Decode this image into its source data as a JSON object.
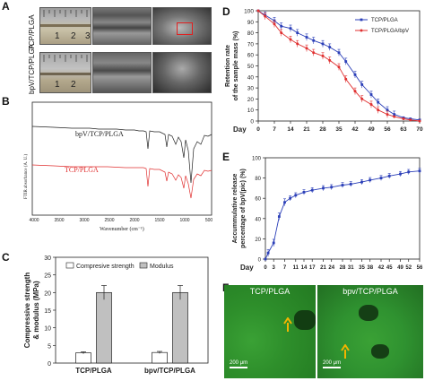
{
  "panel_A": {
    "label": "A",
    "row_labels": [
      "TCP/PLGA",
      "bpV/TCP/PLGA"
    ],
    "ruler_digits": [
      "1",
      "2",
      "3"
    ]
  },
  "panel_B": {
    "label": "B",
    "series_labels": [
      "bpV/TCP/PLGA",
      "TCP/PLGA"
    ],
    "ylabel": "FTIR absorbance (A. U.)",
    "xlabel": "Wavenumber (cm⁻¹)",
    "xticks": [
      "4000",
      "3500",
      "3000",
      "2500",
      "2000",
      "1500",
      "1000",
      "500"
    ]
  },
  "panel_C": {
    "label": "C"
  },
  "panel_D": {
    "label": "D"
  },
  "panel_E": {
    "label": "E"
  },
  "panel_F": {
    "label": "F",
    "left_title": "TCP/PLGA",
    "right_title": "bpv/TCP/PLGA",
    "scale_text": "200 μm"
  },
  "colors": {
    "blue": "#2b3fb8",
    "red": "#e03030",
    "gray_bar": "#c0c0c0",
    "fluo_green": "#2c8d2a",
    "arrow": "#f2b400"
  },
  "chart_data": [
    {
      "id": "C",
      "type": "bar",
      "categories": [
        "TCP/PLGA",
        "bpv/TCP/PLGA"
      ],
      "series": [
        {
          "name": "Compresive strength",
          "values": [
            2.9,
            3.0
          ],
          "errors": [
            0.3,
            0.3
          ]
        },
        {
          "name": "Modulus",
          "values": [
            20,
            20
          ],
          "errors": [
            2.0,
            2.0
          ]
        }
      ],
      "ylabel": "Compressive strength & modulus (MPa)",
      "ylim": [
        0,
        30
      ],
      "yticks": [
        "0",
        "5",
        "10",
        "15",
        "20",
        "25",
        "30"
      ],
      "legend": "top"
    },
    {
      "id": "D",
      "type": "line",
      "xlabel": "Day",
      "ylabel": "Retention rate of the sample mass (%)",
      "xlim": [
        0,
        70
      ],
      "ylim": [
        0,
        100
      ],
      "xticks": [
        "0",
        "7",
        "14",
        "21",
        "28",
        "35",
        "42",
        "49",
        "56",
        "63",
        "70"
      ],
      "yticks": [
        "0",
        "10",
        "20",
        "30",
        "40",
        "50",
        "60",
        "70",
        "80",
        "90",
        "100"
      ],
      "legend": "top-right",
      "series": [
        {
          "name": "TCP/PLGA",
          "color": "#2b3fb8",
          "x": [
            0,
            3,
            7,
            10,
            14,
            17,
            21,
            24,
            28,
            31,
            35,
            38,
            42,
            45,
            49,
            52,
            56,
            59,
            63,
            66,
            70
          ],
          "y": [
            100,
            96,
            91,
            86,
            84,
            80,
            76,
            73,
            70,
            67,
            62,
            54,
            42,
            33,
            24,
            17,
            10,
            6,
            3,
            2,
            1
          ]
        },
        {
          "name": "TCP/PLGA/bpV",
          "color": "#e03030",
          "x": [
            0,
            3,
            7,
            10,
            14,
            17,
            21,
            24,
            28,
            31,
            35,
            38,
            42,
            45,
            49,
            52,
            56,
            59,
            63,
            66,
            70
          ],
          "y": [
            100,
            95,
            88,
            80,
            74,
            70,
            66,
            62,
            59,
            55,
            49,
            38,
            27,
            20,
            15,
            10,
            6,
            4,
            2,
            1,
            0
          ]
        }
      ]
    },
    {
      "id": "E",
      "type": "line",
      "xlabel": "Day",
      "ylabel": "Accummulative release percentage of bpV(pic) (%)",
      "xlim": [
        0,
        56
      ],
      "ylim": [
        0,
        100
      ],
      "xticks": [
        "0",
        "3",
        "7",
        "11",
        "14",
        "17",
        "21",
        "24",
        "28",
        "31",
        "35",
        "38",
        "42",
        "45",
        "49",
        "52",
        "56"
      ],
      "yticks": [
        "0",
        "20",
        "40",
        "60",
        "80",
        "100"
      ],
      "series": [
        {
          "name": "bpV(pic)",
          "color": "#2b3fb8",
          "x": [
            0,
            1,
            3,
            5,
            7,
            9,
            11,
            14,
            17,
            21,
            24,
            28,
            31,
            35,
            38,
            42,
            45,
            49,
            52,
            56
          ],
          "y": [
            0,
            6,
            16,
            42,
            56,
            60,
            63,
            66,
            68,
            70,
            71,
            73,
            74,
            76,
            78,
            80,
            82,
            84,
            86,
            87
          ]
        }
      ]
    }
  ]
}
